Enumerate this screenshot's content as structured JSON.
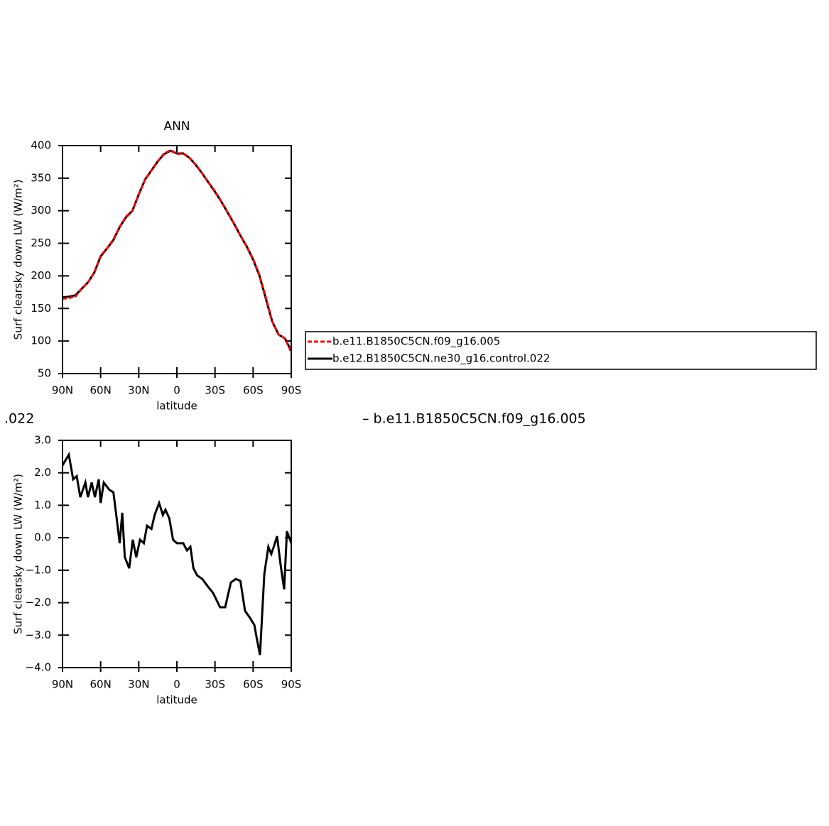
{
  "chart_data": [
    {
      "type": "line",
      "title": "ANN",
      "xlabel": "latitude",
      "ylabel": "Surf clearsky down LW (W/m²)",
      "x": [
        90,
        85,
        80,
        75,
        70,
        65,
        60,
        55,
        50,
        45,
        40,
        35,
        30,
        25,
        20,
        15,
        10,
        5,
        0,
        -5,
        -10,
        -15,
        -20,
        -25,
        -30,
        -35,
        -40,
        -45,
        -50,
        -55,
        -60,
        -65,
        -70,
        -75,
        -80,
        -85,
        -90
      ],
      "series": [
        {
          "name": "b.e11.B1850C5CN.f09_g16.005",
          "color": "#ff0000",
          "dash": true,
          "values": [
            165,
            166,
            168,
            180,
            190,
            205,
            231,
            242,
            256,
            275,
            291,
            300,
            325,
            348,
            362,
            376,
            388,
            393,
            387,
            388,
            381,
            370,
            357,
            343,
            330,
            314,
            297,
            280,
            262,
            245,
            226,
            201,
            167,
            130,
            110,
            104,
            83
          ]
        },
        {
          "name": "b.e12.B1850C5CN.ne30_g16.control.022",
          "color": "#000000",
          "dash": false,
          "values": [
            167,
            168,
            170,
            180,
            190,
            205,
            230,
            242,
            255,
            275,
            290,
            300,
            325,
            348,
            362,
            376,
            387,
            392,
            388,
            388,
            381,
            370,
            357,
            343,
            329,
            314,
            297,
            280,
            262,
            245,
            225,
            200,
            165,
            130,
            110,
            104,
            85
          ]
        }
      ],
      "xlim": [
        90,
        -90
      ],
      "xticks": [
        {
          "value": 90,
          "label": "90N"
        },
        {
          "value": 60,
          "label": "60N"
        },
        {
          "value": 30,
          "label": "30N"
        },
        0,
        {
          "value": -30,
          "label": "30S"
        },
        {
          "value": -60,
          "label": "60S"
        },
        {
          "value": -90,
          "label": "90S"
        }
      ],
      "ylim": [
        50,
        400
      ],
      "yticks": [
        50,
        100,
        150,
        200,
        250,
        300,
        350,
        400
      ],
      "legend": "right"
    },
    {
      "type": "line",
      "xlabel": "latitude",
      "ylabel": "Surf clearsky down LW (W/m²)",
      "annotations": [
        ".022",
        "–  b.e11.B1850C5CN.f09_g16.005"
      ],
      "x": [
        90,
        85,
        81.6,
        78.8,
        76,
        72,
        70,
        67,
        64.5,
        61.5,
        60,
        57.5,
        53,
        50,
        48,
        45,
        43,
        41,
        37.5,
        34.7,
        32,
        29,
        26,
        23.5,
        20,
        17.5,
        14,
        11,
        9,
        6,
        3,
        0,
        -5,
        -8,
        -10.6,
        -13,
        -16,
        -20,
        -24,
        -28.5,
        -34,
        -38,
        -42.5,
        -46.4,
        -50,
        -53.6,
        -57.6,
        -61,
        -63,
        -65.4,
        -68.8,
        -72,
        -74.3,
        -76.6,
        -78.8,
        -81.6,
        -84.4,
        -86.6,
        -90
      ],
      "series": [
        {
          "color": "#000000",
          "dash": false,
          "values": [
            2.23,
            2.56,
            1.8,
            1.9,
            1.25,
            1.7,
            1.25,
            1.7,
            1.25,
            1.8,
            1.07,
            1.7,
            1.47,
            1.4,
            0.8,
            -0.17,
            0.77,
            -0.6,
            -0.94,
            -0.06,
            -0.6,
            -0.06,
            -0.17,
            0.37,
            0.27,
            0.7,
            1.07,
            0.7,
            0.86,
            0.6,
            -0.06,
            -0.17,
            -0.17,
            -0.39,
            -0.28,
            -0.94,
            -1.16,
            -1.27,
            -1.48,
            -1.7,
            -2.14,
            -2.14,
            -1.38,
            -1.27,
            -1.33,
            -2.25,
            -2.47,
            -2.69,
            -3.13,
            -3.61,
            -1.11,
            -0.28,
            -0.5,
            -0.24,
            0.05,
            -0.83,
            -1.59,
            0.2,
            -0.17
          ]
        }
      ],
      "xlim": [
        90,
        -90
      ],
      "xticks": [
        {
          "value": 90,
          "label": "90N"
        },
        {
          "value": 60,
          "label": "60N"
        },
        {
          "value": 30,
          "label": "30N"
        },
        0,
        {
          "value": -30,
          "label": "30S"
        },
        {
          "value": -60,
          "label": "60S"
        },
        {
          "value": -90,
          "label": "90S"
        }
      ],
      "ylim": [
        -4,
        3
      ],
      "yticks": [
        {
          "value": 3,
          "label": "3.0"
        },
        {
          "value": 2,
          "label": "2.0"
        },
        {
          "value": 1,
          "label": "1.0"
        },
        {
          "value": 0,
          "label": "0.0"
        },
        {
          "value": -1,
          "label": "−1.0"
        },
        {
          "value": -2,
          "label": "−2.0"
        },
        {
          "value": -3,
          "label": "−3.0"
        },
        {
          "value": -4,
          "label": "−4.0"
        }
      ]
    }
  ]
}
